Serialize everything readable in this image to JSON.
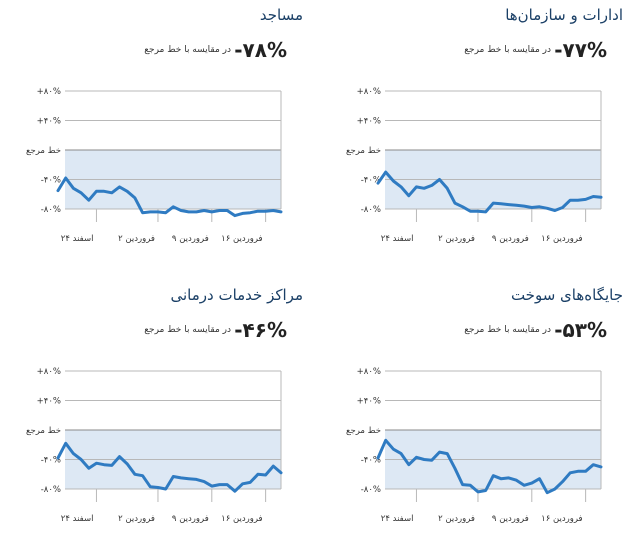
{
  "charts": [
    {
      "title": "ادارات و سازمان‌ها",
      "change": "-۷۷%",
      "comparison_label": "در مقایسه با خط مرجع"
    },
    {
      "title": "مساجد",
      "change": "-۷۸%",
      "comparison_label": "در مقایسه با خط مرجع"
    },
    {
      "title": "جایگاه‌های سوخت",
      "change": "-۵۳%",
      "comparison_label": "در مقایسه با خط مرجع"
    },
    {
      "title": "مراکز خدمات درمانی",
      "change": "-۴۶%",
      "comparison_label": "در مقایسه با خط مرجع"
    }
  ],
  "chart_data": [
    {
      "type": "line",
      "title": "ادارات و سازمان‌ها",
      "y_tick_labels": [
        "+۸۰%",
        "+۴۰%",
        "خط مرجع",
        "-۴۰%",
        "-۸۰%"
      ],
      "y_tick_values": [
        80,
        40,
        0,
        -40,
        -80
      ],
      "ylim": [
        -80,
        80
      ],
      "x_tick_labels": [
        "۲۴ اسفند",
        "۲ فروردین",
        "۹ فروردین",
        "۱۶ فروردین"
      ],
      "x_tick_index": [
        5,
        13,
        20,
        27
      ],
      "baseline_fill_color": "#dde8f4",
      "line_color": "#2f7bc2",
      "grid": true,
      "values": [
        -45,
        -30,
        -42,
        -50,
        -62,
        -50,
        -52,
        -48,
        -40,
        -52,
        -72,
        -77,
        -83,
        -83,
        -84,
        -72,
        -73,
        -74,
        -75,
        -76,
        -78,
        -77,
        -79,
        -82,
        -78,
        -68,
        -68,
        -67,
        -63,
        -64
      ]
    },
    {
      "type": "line",
      "title": "مساجد",
      "y_tick_labels": [
        "+۸۰%",
        "+۴۰%",
        "خط مرجع",
        "-۴۰%",
        "-۸۰%"
      ],
      "y_tick_values": [
        80,
        40,
        0,
        -40,
        -80
      ],
      "ylim": [
        -80,
        80
      ],
      "x_tick_labels": [
        "۲۴ اسفند",
        "۲ فروردین",
        "۹ فروردین",
        "۱۶ فروردین"
      ],
      "x_tick_index": [
        5,
        13,
        20,
        27
      ],
      "baseline_fill_color": "#dde8f4",
      "line_color": "#2f7bc2",
      "grid": true,
      "values": [
        -55,
        -38,
        -52,
        -58,
        -68,
        -56,
        -56,
        -58,
        -50,
        -56,
        -65,
        -85,
        -84,
        -84,
        -85,
        -77,
        -82,
        -84,
        -84,
        -82,
        -84,
        -82,
        -82,
        -89,
        -86,
        -85,
        -83,
        -83,
        -82,
        -84
      ]
    },
    {
      "type": "line",
      "title": "جایگاه‌های سوخت",
      "y_tick_labels": [
        "+۸۰%",
        "+۴۰%",
        "خط مرجع",
        "-۴۰%",
        "-۸۰%"
      ],
      "y_tick_values": [
        80,
        40,
        0,
        -40,
        -80
      ],
      "ylim": [
        -80,
        80
      ],
      "x_tick_labels": [
        "۲۴ اسفند",
        "۲ فروردین",
        "۹ فروردین",
        "۱۶ فروردین"
      ],
      "x_tick_index": [
        5,
        13,
        20,
        27
      ],
      "baseline_fill_color": "#dde8f4",
      "line_color": "#2f7bc2",
      "grid": true,
      "values": [
        -38,
        -14,
        -26,
        -32,
        -47,
        -37,
        -40,
        -41,
        -30,
        -32,
        -52,
        -74,
        -75,
        -84,
        -82,
        -62,
        -66,
        -65,
        -68,
        -75,
        -72,
        -66,
        -85,
        -80,
        -70,
        -58,
        -56,
        -56,
        -47,
        -50
      ]
    },
    {
      "type": "line",
      "title": "مراکز خدمات درمانی",
      "y_tick_labels": [
        "+۸۰%",
        "+۴۰%",
        "خط مرجع",
        "-۴۰%",
        "-۸۰%"
      ],
      "y_tick_values": [
        80,
        40,
        0,
        -40,
        -80
      ],
      "ylim": [
        -80,
        80
      ],
      "x_tick_labels": [
        "۲۴ اسفند",
        "۲ فروردین",
        "۹ فروردین",
        "۱۶ فروردین"
      ],
      "x_tick_index": [
        5,
        13,
        20,
        27
      ],
      "baseline_fill_color": "#dde8f4",
      "line_color": "#2f7bc2",
      "grid": true,
      "values": [
        -38,
        -18,
        -32,
        -40,
        -52,
        -45,
        -47,
        -48,
        -36,
        -46,
        -60,
        -62,
        -77,
        -78,
        -80,
        -63,
        -65,
        -66,
        -67,
        -70,
        -76,
        -74,
        -74,
        -83,
        -73,
        -71,
        -60,
        -61,
        -49,
        -58
      ]
    }
  ]
}
